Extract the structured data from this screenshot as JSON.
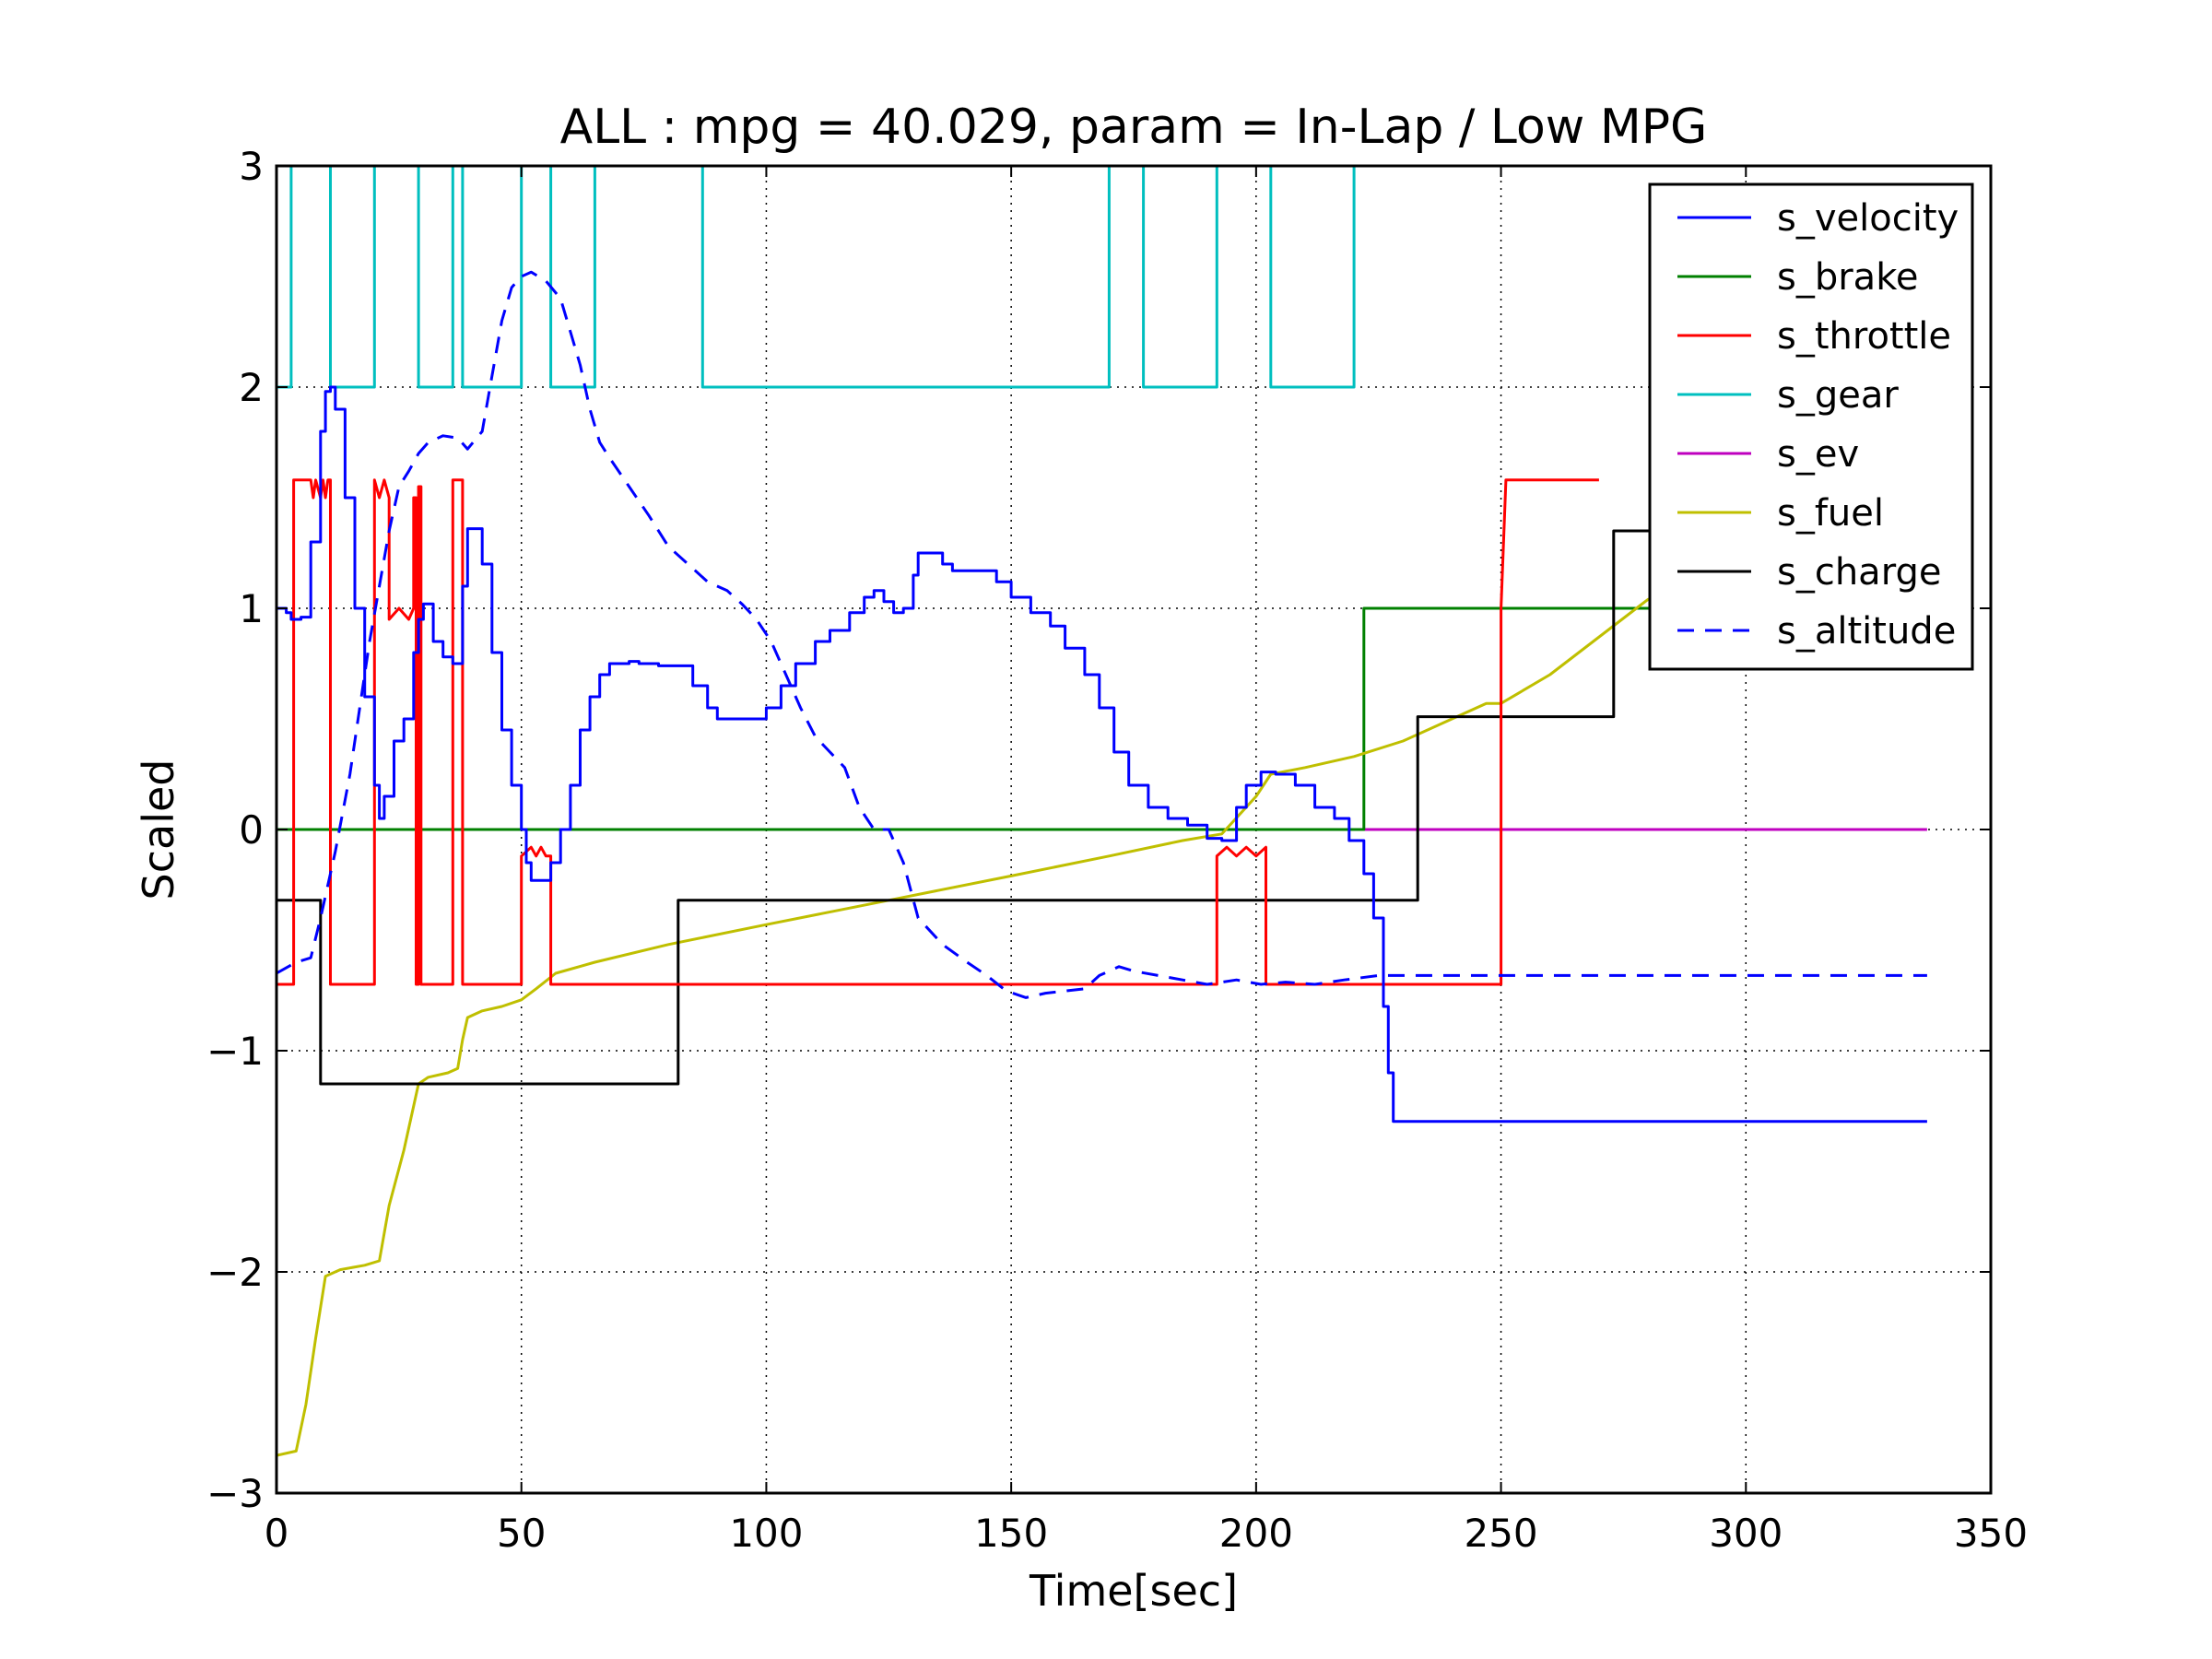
{
  "chart_data": {
    "type": "line",
    "title": "ALL : mpg = 40.029, param = In-Lap / Low MPG",
    "xlabel": "Time[sec]",
    "ylabel": "Scaled",
    "xlim": [
      0,
      350
    ],
    "ylim": [
      -3,
      3
    ],
    "xticks": [
      0,
      50,
      100,
      150,
      200,
      250,
      300,
      350
    ],
    "xtick_labels": [
      "0",
      "50",
      "100",
      "150",
      "200",
      "250",
      "300",
      "350"
    ],
    "yticks": [
      -3,
      -2,
      -1,
      0,
      1,
      2,
      3
    ],
    "ytick_labels": [
      "−3",
      "−2",
      "−1",
      "0",
      "1",
      "2",
      "3"
    ],
    "grid": true,
    "legend_position": "top-right",
    "series": [
      {
        "name": "s_velocity",
        "color": "#0000ff",
        "dashed": false,
        "step": true,
        "points": [
          [
            0,
            1.0
          ],
          [
            2,
            0.98
          ],
          [
            3,
            0.95
          ],
          [
            5,
            0.96
          ],
          [
            7,
            1.3
          ],
          [
            9,
            1.8
          ],
          [
            10,
            1.98
          ],
          [
            11,
            2.0
          ],
          [
            12,
            1.9
          ],
          [
            14,
            1.5
          ],
          [
            16,
            1.0
          ],
          [
            18,
            0.6
          ],
          [
            20,
            0.2
          ],
          [
            21,
            0.05
          ],
          [
            22,
            0.15
          ],
          [
            24,
            0.4
          ],
          [
            26,
            0.5
          ],
          [
            28,
            0.8
          ],
          [
            29,
            0.95
          ],
          [
            30,
            1.02
          ],
          [
            32,
            0.85
          ],
          [
            34,
            0.78
          ],
          [
            36,
            0.75
          ],
          [
            37,
            0.75
          ],
          [
            38,
            1.1
          ],
          [
            39,
            1.36
          ],
          [
            40,
            1.36
          ],
          [
            42,
            1.2
          ],
          [
            44,
            0.8
          ],
          [
            46,
            0.45
          ],
          [
            48,
            0.2
          ],
          [
            50,
            0.0
          ],
          [
            51,
            -0.15
          ],
          [
            52,
            -0.23
          ],
          [
            54,
            -0.23
          ],
          [
            56,
            -0.15
          ],
          [
            58,
            0.0
          ],
          [
            60,
            0.2
          ],
          [
            62,
            0.45
          ],
          [
            64,
            0.6
          ],
          [
            66,
            0.7
          ],
          [
            68,
            0.75
          ],
          [
            72,
            0.76
          ],
          [
            74,
            0.75
          ],
          [
            78,
            0.74
          ],
          [
            82,
            0.74
          ],
          [
            85,
            0.65
          ],
          [
            88,
            0.55
          ],
          [
            90,
            0.5
          ],
          [
            95,
            0.5
          ],
          [
            98,
            0.5
          ],
          [
            100,
            0.55
          ],
          [
            103,
            0.65
          ],
          [
            106,
            0.75
          ],
          [
            110,
            0.85
          ],
          [
            113,
            0.9
          ],
          [
            117,
            0.98
          ],
          [
            120,
            1.05
          ],
          [
            122,
            1.08
          ],
          [
            124,
            1.03
          ],
          [
            126,
            0.98
          ],
          [
            128,
            1.0
          ],
          [
            130,
            1.15
          ],
          [
            131,
            1.25
          ],
          [
            134,
            1.25
          ],
          [
            136,
            1.2
          ],
          [
            138,
            1.17
          ],
          [
            144,
            1.17
          ],
          [
            147,
            1.12
          ],
          [
            150,
            1.05
          ],
          [
            154,
            0.98
          ],
          [
            158,
            0.92
          ],
          [
            161,
            0.82
          ],
          [
            165,
            0.7
          ],
          [
            168,
            0.55
          ],
          [
            171,
            0.35
          ],
          [
            174,
            0.2
          ],
          [
            178,
            0.1
          ],
          [
            182,
            0.05
          ],
          [
            186,
            0.02
          ],
          [
            190,
            -0.04
          ],
          [
            193,
            -0.05
          ],
          [
            196,
            0.1
          ],
          [
            198,
            0.2
          ],
          [
            201,
            0.26
          ],
          [
            204,
            0.25
          ],
          [
            208,
            0.2
          ],
          [
            212,
            0.1
          ],
          [
            216,
            0.05
          ],
          [
            219,
            -0.05
          ],
          [
            222,
            -0.2
          ],
          [
            224,
            -0.4
          ],
          [
            226,
            -0.8
          ],
          [
            227,
            -1.1
          ],
          [
            228,
            -1.32
          ],
          [
            232,
            -1.32
          ],
          [
            337,
            -1.32
          ]
        ]
      },
      {
        "name": "s_brake",
        "color": "#008000",
        "dashed": false,
        "step": false,
        "points": [
          [
            0,
            0
          ],
          [
            222,
            0
          ],
          [
            222,
            1.0
          ],
          [
            290,
            1.0
          ]
        ]
      },
      {
        "name": "s_throttle",
        "color": "#ff0000",
        "dashed": false,
        "step": false,
        "points": [
          [
            0,
            -0.7
          ],
          [
            3.5,
            -0.7
          ],
          [
            3.5,
            1.58
          ],
          [
            7,
            1.58
          ],
          [
            7.5,
            1.5
          ],
          [
            8,
            1.58
          ],
          [
            9,
            1.5
          ],
          [
            9.5,
            1.58
          ],
          [
            10,
            1.5
          ],
          [
            10.5,
            1.58
          ],
          [
            11,
            1.58
          ],
          [
            11,
            -0.7
          ],
          [
            20,
            -0.7
          ],
          [
            20,
            1.58
          ],
          [
            21,
            1.5
          ],
          [
            22,
            1.58
          ],
          [
            23,
            1.5
          ],
          [
            23,
            0.95
          ],
          [
            25,
            1.0
          ],
          [
            27,
            0.95
          ],
          [
            28,
            1.0
          ],
          [
            28,
            1.5
          ],
          [
            28.5,
            1.5
          ],
          [
            28.5,
            -0.7
          ],
          [
            29,
            -0.7
          ],
          [
            29,
            1.55
          ],
          [
            29.5,
            1.55
          ],
          [
            29.5,
            -0.7
          ],
          [
            36,
            -0.7
          ],
          [
            36,
            1.58
          ],
          [
            38,
            1.58
          ],
          [
            38,
            -0.7
          ],
          [
            50,
            -0.7
          ],
          [
            50,
            -0.12
          ],
          [
            52,
            -0.08
          ],
          [
            53,
            -0.12
          ],
          [
            54,
            -0.08
          ],
          [
            55,
            -0.12
          ],
          [
            56,
            -0.12
          ],
          [
            56,
            -0.7
          ],
          [
            192,
            -0.7
          ],
          [
            192,
            -0.12
          ],
          [
            194,
            -0.08
          ],
          [
            196,
            -0.12
          ],
          [
            198,
            -0.08
          ],
          [
            200,
            -0.12
          ],
          [
            202,
            -0.08
          ],
          [
            202,
            -0.7
          ],
          [
            250,
            -0.7
          ],
          [
            250,
            1.0
          ],
          [
            251,
            1.58
          ],
          [
            270,
            1.58
          ]
        ]
      },
      {
        "name": "s_gear",
        "color": "#00bfbf",
        "dashed": false,
        "step": false,
        "points": [
          [
            0,
            2
          ],
          [
            3,
            2
          ],
          [
            3,
            3
          ],
          [
            11,
            3
          ],
          [
            11,
            2
          ],
          [
            20,
            2
          ],
          [
            20,
            3
          ],
          [
            29,
            3
          ],
          [
            29,
            2
          ],
          [
            36,
            2
          ],
          [
            36,
            3
          ],
          [
            38,
            3
          ],
          [
            38,
            2
          ],
          [
            50,
            2
          ],
          [
            50,
            3
          ],
          [
            56,
            3
          ],
          [
            56,
            2
          ],
          [
            65,
            2
          ],
          [
            65,
            3
          ],
          [
            87,
            3
          ],
          [
            87,
            2
          ],
          [
            170,
            2
          ],
          [
            170,
            3
          ],
          [
            177,
            3
          ],
          [
            177,
            2
          ],
          [
            192,
            2
          ],
          [
            192,
            3
          ],
          [
            203,
            3
          ],
          [
            203,
            2
          ],
          [
            220,
            2
          ],
          [
            220,
            3
          ]
        ]
      },
      {
        "name": "s_ev",
        "color": "#bf00bf",
        "dashed": false,
        "step": false,
        "points": [
          [
            0,
            0
          ],
          [
            337,
            0
          ]
        ]
      },
      {
        "name": "s_fuel",
        "color": "#bfbf00",
        "dashed": false,
        "step": false,
        "points": [
          [
            0,
            -2.83
          ],
          [
            4,
            -2.81
          ],
          [
            6,
            -2.6
          ],
          [
            8,
            -2.3
          ],
          [
            10,
            -2.02
          ],
          [
            13,
            -1.99
          ],
          [
            18,
            -1.97
          ],
          [
            21,
            -1.95
          ],
          [
            23,
            -1.7
          ],
          [
            26,
            -1.45
          ],
          [
            28,
            -1.25
          ],
          [
            29,
            -1.15
          ],
          [
            31,
            -1.12
          ],
          [
            35,
            -1.1
          ],
          [
            37,
            -1.08
          ],
          [
            38,
            -0.95
          ],
          [
            39,
            -0.85
          ],
          [
            42,
            -0.82
          ],
          [
            46,
            -0.8
          ],
          [
            50,
            -0.77
          ],
          [
            53,
            -0.72
          ],
          [
            57,
            -0.65
          ],
          [
            65,
            -0.6
          ],
          [
            80,
            -0.52
          ],
          [
            100,
            -0.43
          ],
          [
            125,
            -0.32
          ],
          [
            150,
            -0.21
          ],
          [
            170,
            -0.12
          ],
          [
            185,
            -0.05
          ],
          [
            193,
            -0.02
          ],
          [
            200,
            0.15
          ],
          [
            203,
            0.25
          ],
          [
            210,
            0.28
          ],
          [
            220,
            0.33
          ],
          [
            230,
            0.4
          ],
          [
            240,
            0.5
          ],
          [
            247,
            0.57
          ],
          [
            250,
            0.57
          ],
          [
            260,
            0.7
          ],
          [
            280,
            1.04
          ],
          [
            290,
            1.08
          ]
        ]
      },
      {
        "name": "s_charge",
        "color": "#000000",
        "dashed": false,
        "step": false,
        "points": [
          [
            0,
            -0.32
          ],
          [
            9,
            -0.32
          ],
          [
            9,
            -1.15
          ],
          [
            82,
            -1.15
          ],
          [
            82,
            -0.32
          ],
          [
            233,
            -0.32
          ],
          [
            233,
            0.51
          ],
          [
            273,
            0.51
          ],
          [
            273,
            1.35
          ],
          [
            290,
            1.35
          ]
        ]
      },
      {
        "name": "s_altitude",
        "color": "#0000ff",
        "dashed": true,
        "step": false,
        "points": [
          [
            0,
            -0.65
          ],
          [
            4,
            -0.6
          ],
          [
            7,
            -0.58
          ],
          [
            9,
            -0.4
          ],
          [
            12,
            -0.1
          ],
          [
            15,
            0.25
          ],
          [
            17,
            0.55
          ],
          [
            19,
            0.85
          ],
          [
            21,
            1.1
          ],
          [
            23,
            1.35
          ],
          [
            25,
            1.55
          ],
          [
            27,
            1.62
          ],
          [
            29,
            1.7
          ],
          [
            31,
            1.75
          ],
          [
            34,
            1.78
          ],
          [
            37,
            1.77
          ],
          [
            39,
            1.72
          ],
          [
            42,
            1.8
          ],
          [
            44,
            2.05
          ],
          [
            46,
            2.3
          ],
          [
            48,
            2.45
          ],
          [
            50,
            2.5
          ],
          [
            52,
            2.52
          ],
          [
            55,
            2.48
          ],
          [
            58,
            2.4
          ],
          [
            60,
            2.25
          ],
          [
            62,
            2.1
          ],
          [
            64,
            1.9
          ],
          [
            66,
            1.75
          ],
          [
            68,
            1.68
          ],
          [
            72,
            1.55
          ],
          [
            76,
            1.42
          ],
          [
            80,
            1.28
          ],
          [
            84,
            1.2
          ],
          [
            88,
            1.12
          ],
          [
            92,
            1.08
          ],
          [
            95,
            1.02
          ],
          [
            98,
            0.95
          ],
          [
            101,
            0.85
          ],
          [
            104,
            0.7
          ],
          [
            107,
            0.55
          ],
          [
            110,
            0.42
          ],
          [
            113,
            0.35
          ],
          [
            116,
            0.28
          ],
          [
            119,
            0.1
          ],
          [
            122,
            0.0
          ],
          [
            125,
            0.0
          ],
          [
            128,
            -0.15
          ],
          [
            131,
            -0.4
          ],
          [
            136,
            -0.52
          ],
          [
            141,
            -0.6
          ],
          [
            145,
            -0.66
          ],
          [
            149,
            -0.73
          ],
          [
            153,
            -0.76
          ],
          [
            157,
            -0.74
          ],
          [
            161,
            -0.73
          ],
          [
            165,
            -0.72
          ],
          [
            168,
            -0.66
          ],
          [
            172,
            -0.62
          ],
          [
            175,
            -0.64
          ],
          [
            180,
            -0.66
          ],
          [
            185,
            -0.68
          ],
          [
            190,
            -0.7
          ],
          [
            196,
            -0.68
          ],
          [
            201,
            -0.7
          ],
          [
            206,
            -0.69
          ],
          [
            212,
            -0.7
          ],
          [
            218,
            -0.68
          ],
          [
            225,
            -0.66
          ],
          [
            235,
            -0.66
          ],
          [
            250,
            -0.66
          ],
          [
            300,
            -0.66
          ],
          [
            337,
            -0.66
          ]
        ]
      }
    ]
  }
}
